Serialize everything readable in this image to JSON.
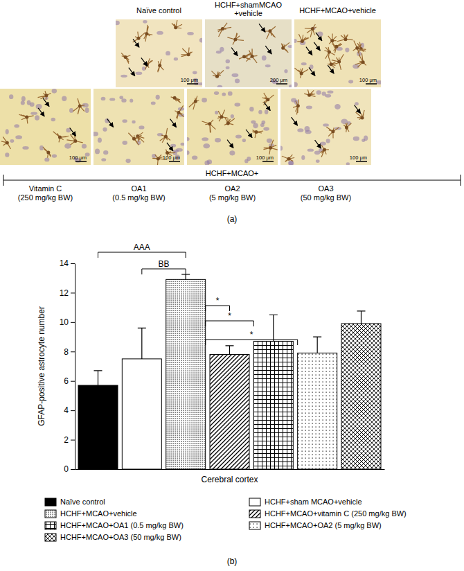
{
  "panel_a": {
    "label": "(a)",
    "group_label": "HCHF+MCAO+",
    "images": [
      {
        "title_lines": [
          "Naïve control"
        ],
        "scale_bar": "100 μm"
      },
      {
        "title_lines": [
          "HCHF+shamMCAO",
          "+vehicle"
        ],
        "scale_bar": "200 μm"
      },
      {
        "title_lines": [
          "HCHF+MCAO+vehicle"
        ],
        "scale_bar": "100 μm"
      },
      {
        "title_lines": [
          "Vitamin C",
          "(250 mg/kg BW)"
        ],
        "scale_bar": "100 μm"
      },
      {
        "title_lines": [
          "OA1",
          "(0.5 mg/kg BW)"
        ],
        "scale_bar": "100 μm"
      },
      {
        "title_lines": [
          "OA2",
          "(5 mg/kg BW)"
        ],
        "scale_bar": "100 μm"
      },
      {
        "title_lines": [
          "OA3",
          "(50 mg/kg BW)"
        ],
        "scale_bar": "100 μm"
      }
    ]
  },
  "chart_data": {
    "type": "bar",
    "panel_label": "(b)",
    "categories": [
      "Cerebral cortex"
    ],
    "y_label": "GFAP-positive astrocyte number",
    "ylim": [
      0,
      14
    ],
    "yticks": [
      0,
      2,
      4,
      6,
      8,
      10,
      12,
      14
    ],
    "legend": "bottom",
    "series": [
      {
        "name": "Naïve control",
        "color": "#000000",
        "values": [
          5.7
        ],
        "errors": [
          1.0
        ]
      },
      {
        "name": "HCHF+sham MCAO+vehicle",
        "color": "#ffffff",
        "values": [
          7.5
        ],
        "errors": [
          2.1
        ]
      },
      {
        "name": "HCHF+MCAO+vehicle",
        "color": "#ffffff",
        "values": [
          12.9
        ],
        "errors": [
          0.35
        ]
      },
      {
        "name": "HCHF+MCAO+vitamin C (250 mg/kg BW)",
        "color": "#ffffff",
        "values": [
          7.8
        ],
        "errors": [
          0.6
        ]
      },
      {
        "name": "HCHF+MCAO+OA1 (0.5 mg/kg BW)",
        "color": "#ffffff",
        "values": [
          8.7
        ],
        "errors": [
          1.8
        ]
      },
      {
        "name": "HCHF+MCAO+OA2 (5 mg/kg BW)",
        "color": "#ffffff",
        "values": [
          7.9
        ],
        "errors": [
          1.1
        ]
      },
      {
        "name": "HCHF+MCAO+OA3 (50 mg/kg BW)",
        "color": "#ffffff",
        "values": [
          9.9
        ],
        "errors": [
          0.85
        ]
      }
    ],
    "annotations": [
      {
        "text": "AAA",
        "between": [
          "Naïve control",
          "HCHF+MCAO+vehicle"
        ]
      },
      {
        "text": "BB",
        "between": [
          "HCHF+sham MCAO+vehicle",
          "HCHF+MCAO+vehicle"
        ]
      },
      {
        "text": "*",
        "between": [
          "HCHF+MCAO+vehicle",
          "HCHF+MCAO+vitamin C (250 mg/kg BW)"
        ]
      },
      {
        "text": "*",
        "between": [
          "HCHF+MCAO+vehicle",
          "HCHF+MCAO+OA1 (0.5 mg/kg BW)"
        ]
      },
      {
        "text": "*",
        "between": [
          "HCHF+MCAO+vehicle",
          "HCHF+MCAO+OA2 (5 mg/kg BW)"
        ]
      }
    ]
  }
}
